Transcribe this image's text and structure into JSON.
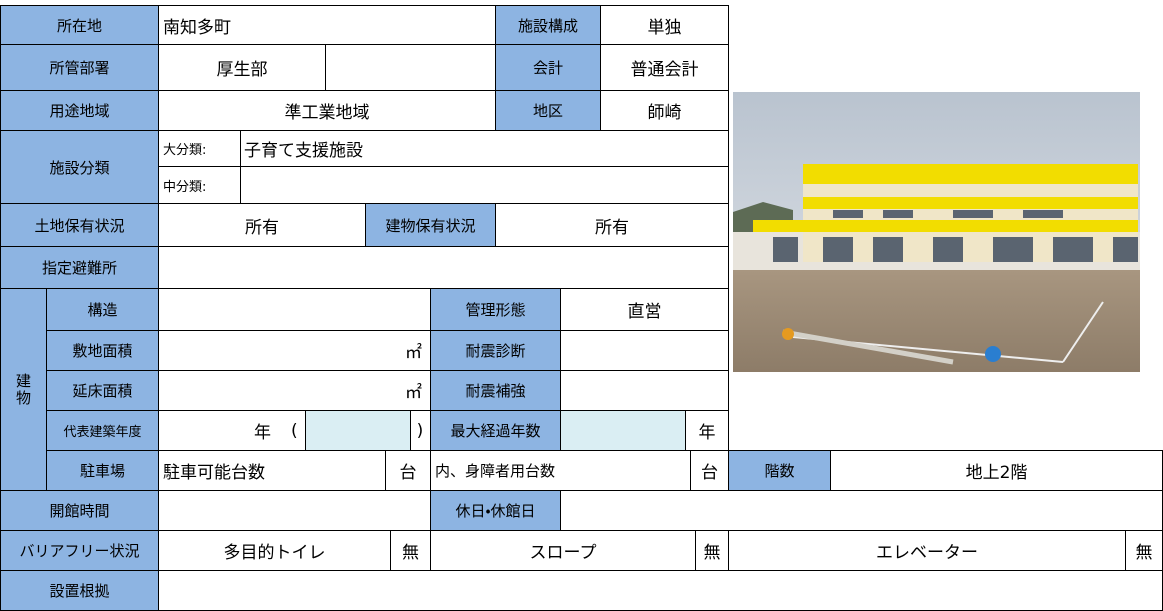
{
  "location": {
    "label": "所在地",
    "value": "南知多町"
  },
  "composition": {
    "label": "施設構成",
    "value": "単独"
  },
  "department": {
    "label": "所管部署",
    "value": "厚生部"
  },
  "accounting": {
    "label": "会計",
    "value": "普通会計"
  },
  "zoning": {
    "label": "用途地域",
    "value": "準工業地域"
  },
  "district": {
    "label": "地区",
    "value": "師崎"
  },
  "classification": {
    "label": "施設分類",
    "major_label": "大分類:",
    "major": "子育て支援施設",
    "minor_label": "中分類:"
  },
  "land_ownership": {
    "label": "土地保有状況",
    "value": "所有"
  },
  "building_ownership": {
    "label": "建物保有状況",
    "value": "所有"
  },
  "evacuation": {
    "label": "指定避難所"
  },
  "building": {
    "label": "建物",
    "structure": "構造",
    "site_area": "敷地面積",
    "floor_area": "延床面積",
    "area_unit": "㎡",
    "year": "代表建築年度",
    "year_unit": "年",
    "paren_open": "(",
    "paren_close": ")",
    "parking": "駐車場"
  },
  "management": {
    "label": "管理形態",
    "value": "直営"
  },
  "seismic_diagnosis": {
    "label": "耐震診断"
  },
  "seismic_retrofit": {
    "label": "耐震補強"
  },
  "max_age": {
    "label": "最大経過年数",
    "unit": "年"
  },
  "parking": {
    "capacity": "駐車可能台数",
    "accessible": "内、身障者用台数",
    "unit": "台"
  },
  "floors": {
    "label": "階数",
    "value": "地上2階"
  },
  "hours": {
    "label": "開館時間"
  },
  "holidays": {
    "label": "休日・休館日"
  },
  "barrier_free": {
    "label": "バリアフリー状況",
    "toilet": "多目的トイレ",
    "slope": "スロープ",
    "elevator": "エレベーター",
    "none": "無"
  },
  "basis": {
    "label": "設置根拠"
  }
}
